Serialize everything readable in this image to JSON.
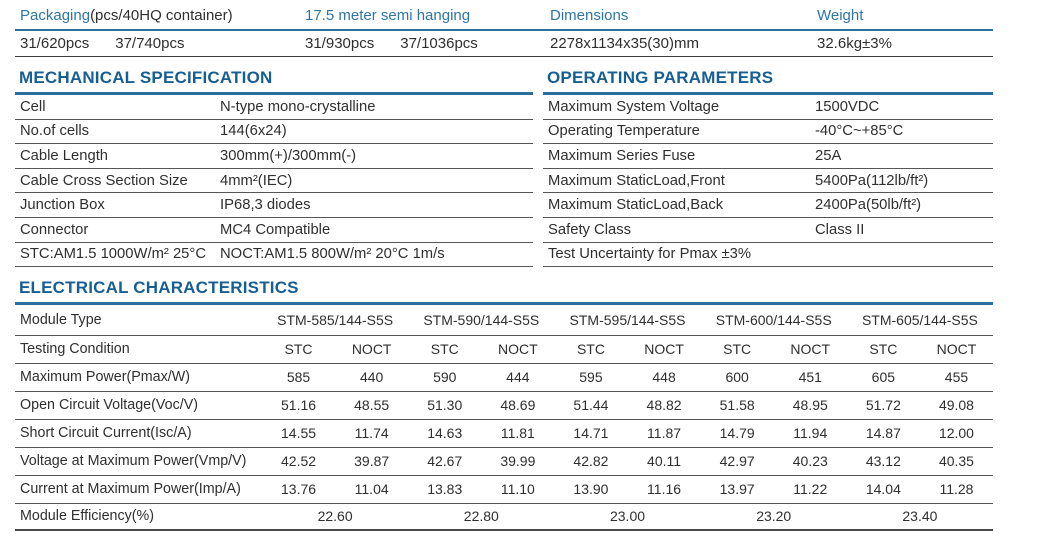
{
  "colors": {
    "accent_blue_line": "#2a6f9e",
    "header_text_blue": "#2e75a6",
    "section_title_blue": "#175f93",
    "body_text": "#2f2f2f"
  },
  "top": {
    "packaging_label_blue": "Packaging",
    "packaging_label_rest": "(pcs/40HQ container)",
    "semi_hanging_label": "17.5 meter semi hanging",
    "dimensions_label": "Dimensions",
    "weight_label": "Weight",
    "packaging_values": [
      "31/620pcs",
      "37/740pcs"
    ],
    "semi_hanging_values": [
      "31/930pcs",
      "37/1036pcs"
    ],
    "dimensions_value": "2278x1134x35(30)mm",
    "weight_value": "32.6kg±3%"
  },
  "mechanical": {
    "title": "MECHANICAL SPECIFICATION",
    "rows": [
      {
        "label": "Cell",
        "value": "N-type mono-crystalline"
      },
      {
        "label": "No.of cells",
        "value": "144(6x24)"
      },
      {
        "label": "Cable Length",
        "value": "300mm(+)/300mm(-)"
      },
      {
        "label": "Cable Cross Section Size",
        "value": "4mm²(IEC)"
      },
      {
        "label": "Junction Box",
        "value": "IP68,3 diodes"
      },
      {
        "label": "Connector",
        "value": "MC4 Compatible"
      },
      {
        "label": "STC:AM1.5 1000W/m² 25°C",
        "value": "NOCT:AM1.5 800W/m² 20°C 1m/s"
      }
    ]
  },
  "operating": {
    "title": "OPERATING PARAMETERS",
    "rows": [
      {
        "label": "Maximum System Voltage",
        "value": "1500VDC"
      },
      {
        "label": "Operating Temperature",
        "value": "-40°C~+85°C"
      },
      {
        "label": "Maximum Series Fuse",
        "value": "25A"
      },
      {
        "label": "Maximum StaticLoad,Front",
        "value": "5400Pa(112lb/ft²)"
      },
      {
        "label": "Maximum StaticLoad,Back",
        "value": "2400Pa(50lb/ft²)"
      },
      {
        "label": "Safety Class",
        "value": "Class II"
      },
      {
        "label": "Test Uncertainty for Pmax ±3%",
        "value": ""
      }
    ]
  },
  "electrical": {
    "title": "ELECTRICAL CHARACTERISTICS",
    "module_type_label": "Module Type",
    "testing_condition_label": "Testing Condition",
    "modules": [
      "STM-585/144-S5S",
      "STM-590/144-S5S",
      "STM-595/144-S5S",
      "STM-600/144-S5S",
      "STM-605/144-S5S"
    ],
    "conditions": [
      "STC",
      "NOCT"
    ],
    "rows": [
      {
        "label": "Maximum Power(Pmax/W)",
        "values": [
          "585",
          "440",
          "590",
          "444",
          "595",
          "448",
          "600",
          "451",
          "605",
          "455"
        ]
      },
      {
        "label": "Open Circuit Voltage(Voc/V)",
        "values": [
          "51.16",
          "48.55",
          "51.30",
          "48.69",
          "51.44",
          "48.82",
          "51.58",
          "48.95",
          "51.72",
          "49.08"
        ]
      },
      {
        "label": "Short Circuit Current(Isc/A)",
        "values": [
          "14.55",
          "11.74",
          "14.63",
          "11.81",
          "14.71",
          "11.87",
          "14.79",
          "11.94",
          "14.87",
          "12.00"
        ]
      },
      {
        "label": "Voltage at Maximum Power(Vmp/V)",
        "values": [
          "42.52",
          "39.87",
          "42.67",
          "39.99",
          "42.82",
          "40.11",
          "42.97",
          "40.23",
          "43.12",
          "40.35"
        ]
      },
      {
        "label": "Current at Maximum Power(Imp/A)",
        "values": [
          "13.76",
          "11.04",
          "13.83",
          "11.10",
          "13.90",
          "11.16",
          "13.97",
          "11.22",
          "14.04",
          "11.28"
        ]
      }
    ],
    "efficiency": {
      "label": "Module Efficiency(%)",
      "values": [
        "22.60",
        "22.80",
        "23.00",
        "23.20",
        "23.40"
      ]
    }
  }
}
